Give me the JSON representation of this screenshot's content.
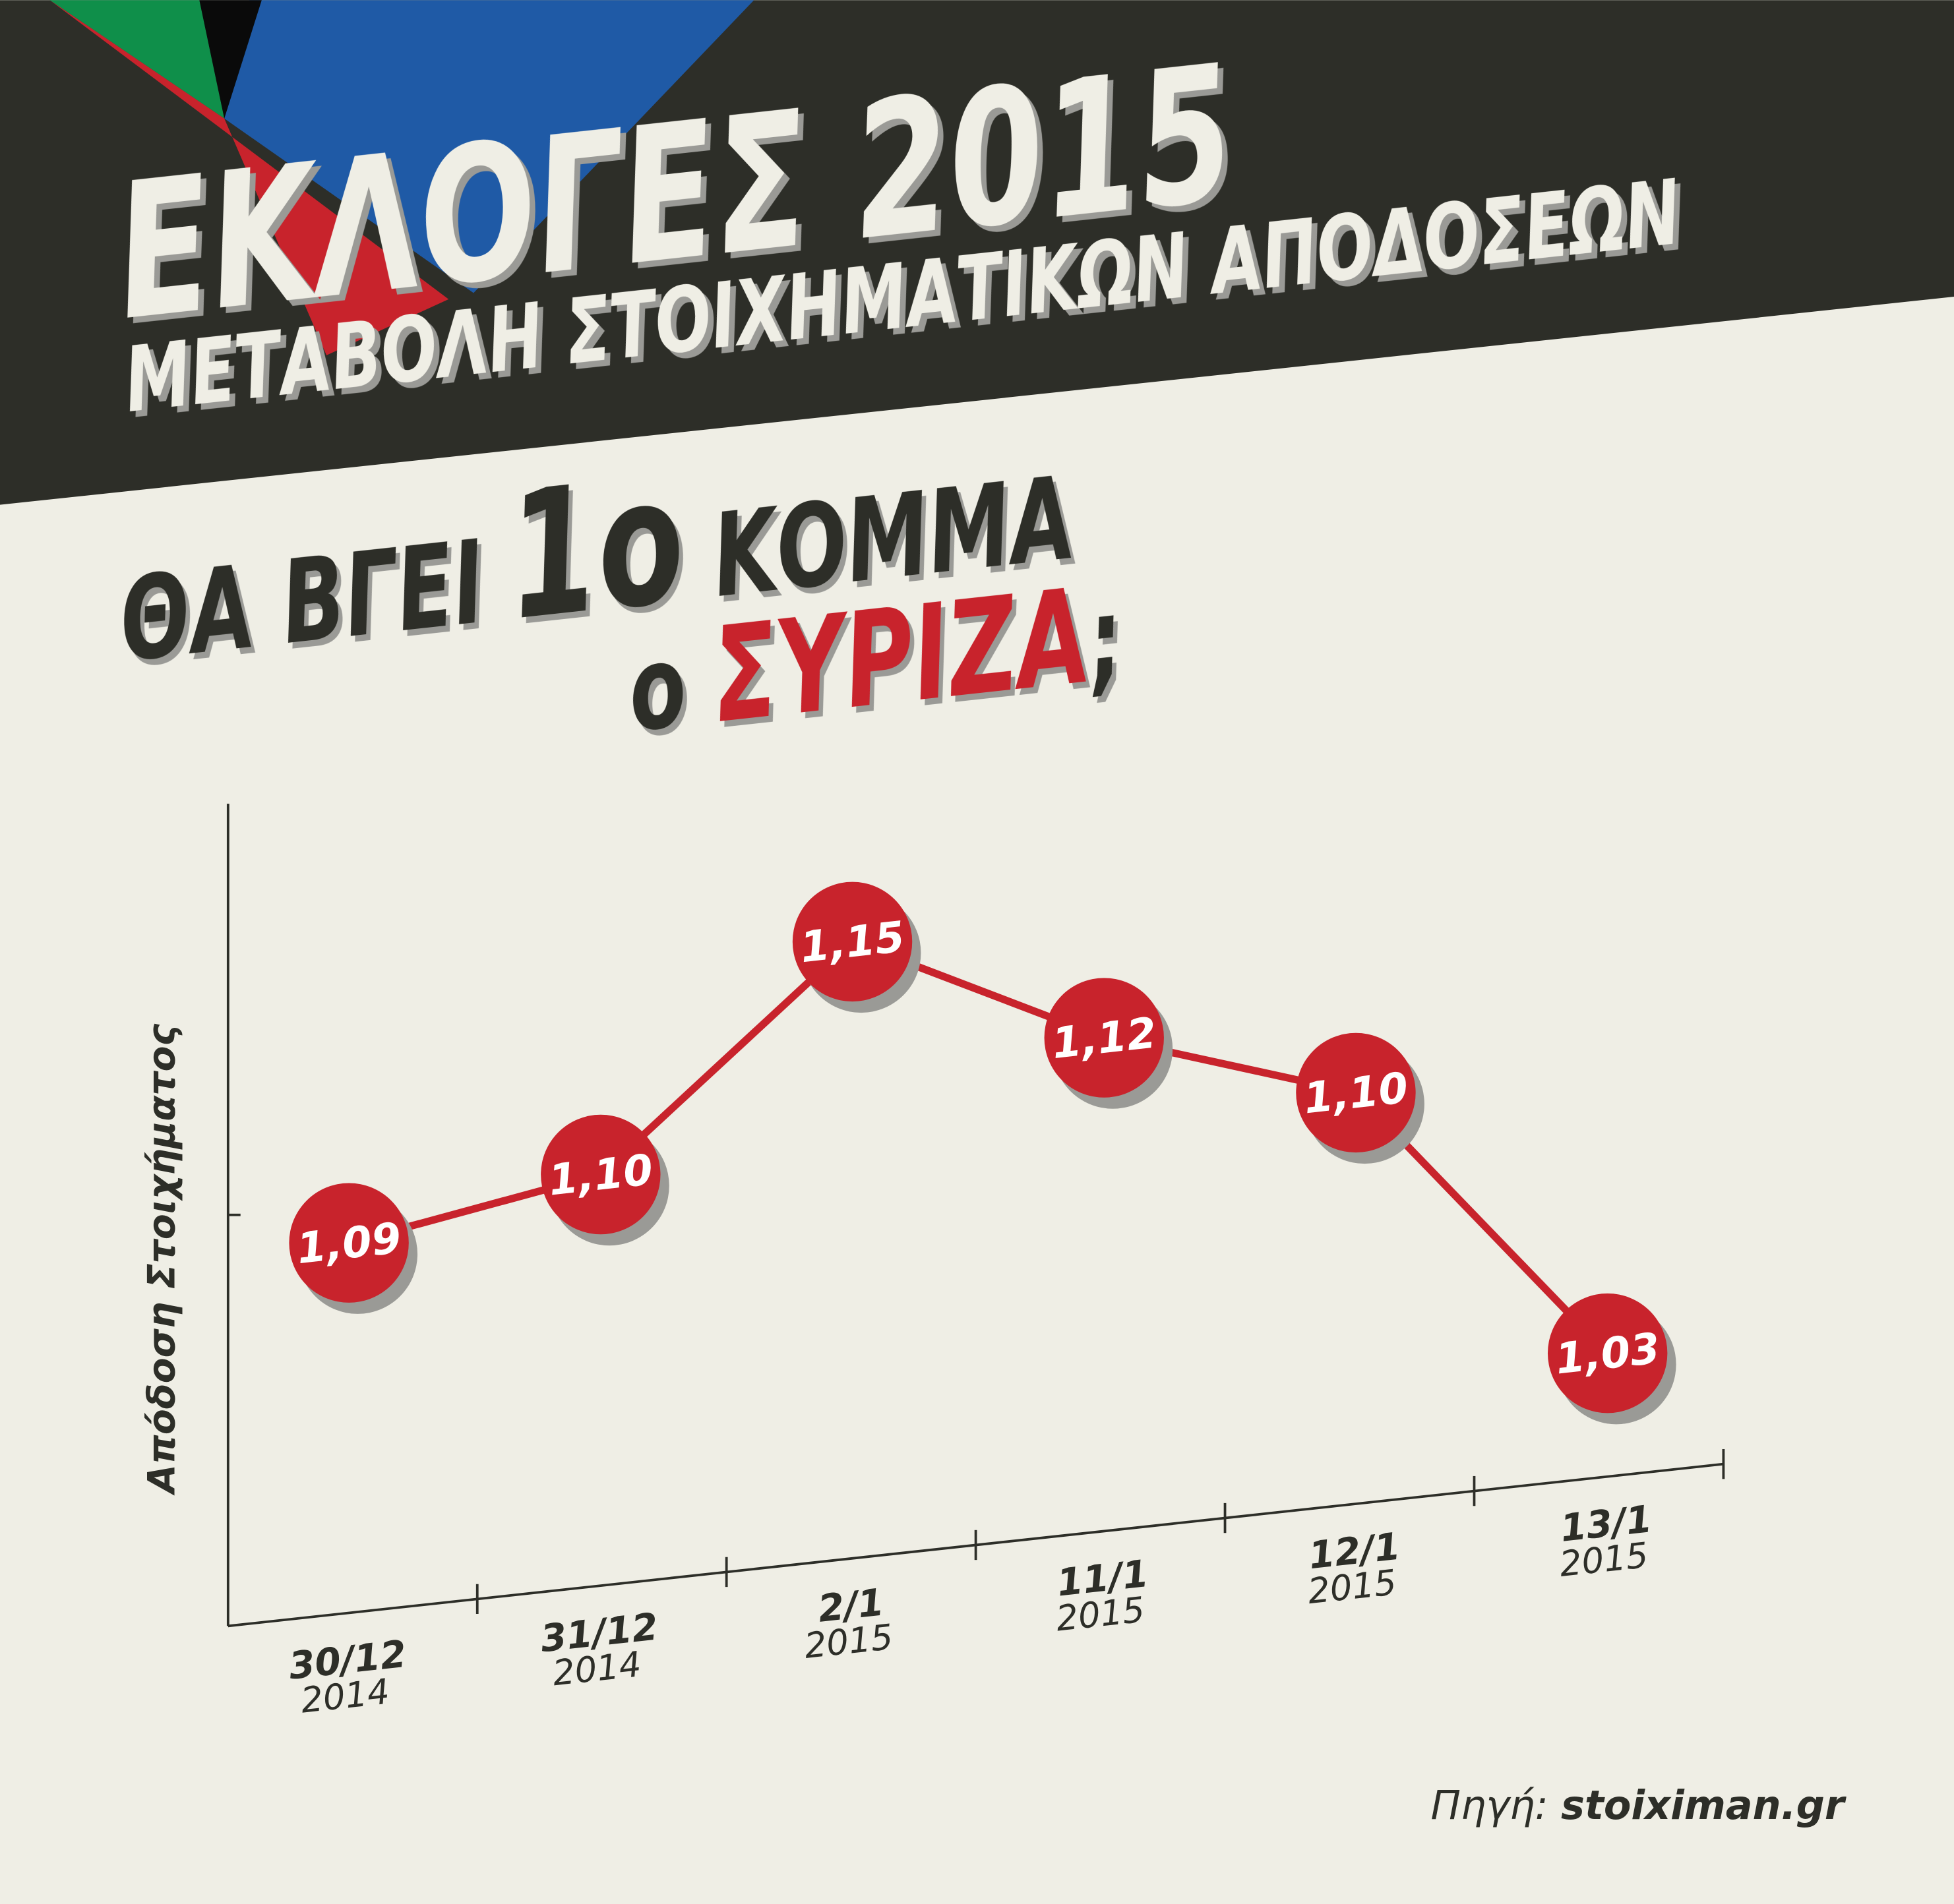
{
  "header": {
    "title": "ΕΚΛΟΓΕΣ 2015",
    "subtitle": "ΜΕΤΑΒΟΛΗ ΣΤΟΙΧΗΜΑΤΙΚΩΝ ΑΠΟΔΟΣΕΩΝ"
  },
  "question": {
    "line1": [
      "ΘΑ ΒΓΕΙ",
      "1ο",
      "ΚΟΜΜΑ"
    ],
    "line2": [
      "ο",
      "ΣΥΡΙΖΑ",
      ";"
    ]
  },
  "chart_data": {
    "type": "line",
    "categories": [
      "30/12",
      "31/12",
      "2/1",
      "11/1",
      "12/1",
      "13/1"
    ],
    "years": [
      "2014",
      "2014",
      "2015",
      "2015",
      "2015",
      "2015"
    ],
    "values": [
      1.09,
      1.1,
      1.15,
      1.12,
      1.1,
      1.03
    ],
    "value_labels": [
      "1,09",
      "1,10",
      "1,15",
      "1,12",
      "1,10",
      "1,03"
    ],
    "color": "#c8232c",
    "ylim": [
      1.0,
      1.2
    ],
    "y_label": "Απόδοση Στοιχήματος"
  },
  "source": {
    "label": "Πηγή:",
    "name": "stoiximan.gr"
  }
}
